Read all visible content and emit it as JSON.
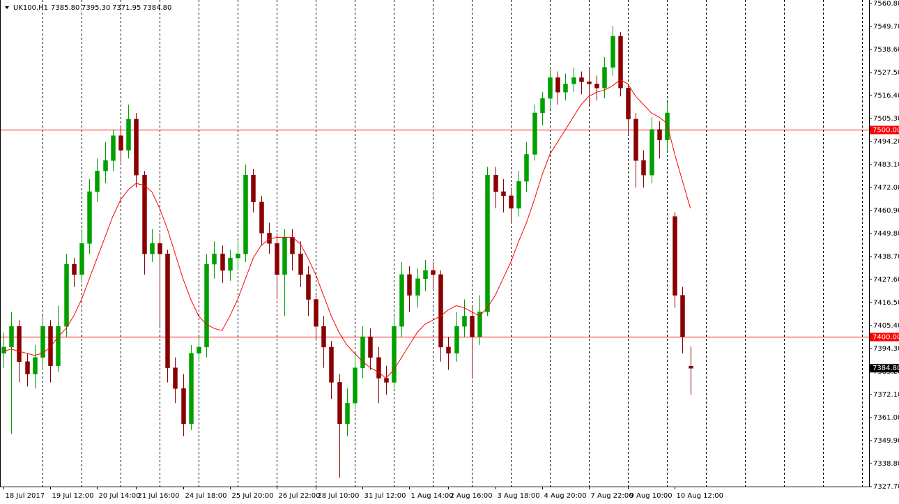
{
  "chart_data": {
    "type": "candlestick",
    "symbol": "UK100,H1",
    "header_ohlc": [
      "7385.80",
      "7395.30",
      "7371.95",
      "7384.80"
    ],
    "categories": [
      "18 Jul 2017",
      null,
      null,
      null,
      null,
      null,
      "19 Jul 12:00",
      null,
      null,
      null,
      null,
      null,
      "20 Jul 14:00",
      null,
      null,
      null,
      null,
      "21 Jul 16:00",
      null,
      null,
      null,
      null,
      null,
      "24 Jul 18:00",
      null,
      null,
      null,
      null,
      null,
      "25 Jul 20:00",
      null,
      null,
      null,
      null,
      null,
      "26 Jul 22:00",
      null,
      null,
      null,
      null,
      "28 Jul 10:00",
      null,
      null,
      null,
      null,
      null,
      "31 Jul 12:00",
      null,
      null,
      null,
      null,
      null,
      "1 Aug 14:00",
      null,
      null,
      null,
      null,
      "2 Aug 16:00",
      null,
      null,
      null,
      null,
      null,
      "3 Aug 18:00",
      null,
      null,
      null,
      null,
      null,
      "4 Aug 20:00",
      null,
      null,
      null,
      null,
      null,
      "7 Aug 22:00",
      null,
      null,
      null,
      null,
      "9 Aug 10:00",
      null,
      null,
      null,
      null,
      null,
      "10 Aug 12:00",
      null,
      null
    ],
    "open": [
      7392,
      7395,
      7405,
      7388,
      7382,
      7390,
      7405,
      7386,
      7405,
      7435,
      7430,
      7445,
      7470,
      7480,
      7485,
      7497,
      7490,
      7505,
      7478,
      7440,
      7445,
      7440,
      7385,
      7375,
      7358,
      7392,
      7395,
      7435,
      7440,
      7432,
      7438,
      7440,
      7478,
      7465,
      7450,
      7445,
      7430,
      7448,
      7440,
      7430,
      7418,
      7405,
      7395,
      7378,
      7358,
      7368,
      7385,
      7400,
      7390,
      7380,
      7378,
      7405,
      7430,
      7420,
      7428,
      7432,
      7430,
      7395,
      7392,
      7405,
      7410,
      7400,
      7412,
      7478,
      7470,
      7468,
      7462,
      7475,
      7488,
      7508,
      7515,
      7525,
      7518,
      7522,
      7525,
      7523,
      7522,
      7520,
      7530,
      7545,
      7520,
      7505,
      7485,
      7478,
      7500,
      7495,
      7458,
      7420,
      7385.8
    ],
    "high": [
      7402,
      7412,
      7408,
      7392,
      7396,
      7410,
      7408,
      7415,
      7440,
      7438,
      7452,
      7476,
      7486,
      7494,
      7500,
      7502,
      7512,
      7508,
      7480,
      7452,
      7450,
      7442,
      7390,
      7382,
      7396,
      7400,
      7440,
      7446,
      7444,
      7442,
      7446,
      7483,
      7481,
      7468,
      7455,
      7450,
      7452,
      7452,
      7446,
      7434,
      7420,
      7410,
      7398,
      7382,
      7375,
      7392,
      7405,
      7404,
      7395,
      7386,
      7410,
      7436,
      7434,
      7433,
      7437,
      7436,
      7432,
      7400,
      7412,
      7418,
      7414,
      7420,
      7482,
      7482,
      7476,
      7472,
      7480,
      7494,
      7512,
      7518,
      7530,
      7528,
      7527,
      7530,
      7528,
      7530,
      7526,
      7535,
      7550,
      7547,
      7522,
      7508,
      7490,
      7506,
      7504,
      7513,
      7460,
      7424,
      7395.3
    ],
    "low": [
      7385,
      7353,
      7378,
      7376,
      7375,
      7384,
      7378,
      7383,
      7400,
      7424,
      7426,
      7440,
      7465,
      7474,
      7480,
      7484,
      7486,
      7472,
      7430,
      7436,
      7405,
      7378,
      7368,
      7352,
      7355,
      7388,
      7390,
      7428,
      7426,
      7427,
      7432,
      7436,
      7460,
      7444,
      7440,
      7418,
      7410,
      7432,
      7424,
      7410,
      7398,
      7385,
      7370,
      7332,
      7352,
      7365,
      7380,
      7384,
      7368,
      7372,
      7375,
      7400,
      7412,
      7414,
      7422,
      7422,
      7388,
      7384,
      7388,
      7400,
      7380,
      7396,
      7410,
      7462,
      7460,
      7455,
      7458,
      7470,
      7485,
      7502,
      7510,
      7512,
      7514,
      7518,
      7517,
      7512,
      7514,
      7515,
      7526,
      7516,
      7498,
      7472,
      7472,
      7474,
      7486,
      7490,
      7414,
      7392,
      7371.95
    ],
    "close": [
      7395,
      7405,
      7388,
      7382,
      7390,
      7405,
      7386,
      7405,
      7435,
      7430,
      7445,
      7470,
      7480,
      7485,
      7497,
      7490,
      7505,
      7478,
      7440,
      7445,
      7440,
      7385,
      7375,
      7358,
      7392,
      7395,
      7435,
      7440,
      7432,
      7438,
      7440,
      7478,
      7465,
      7450,
      7445,
      7430,
      7448,
      7440,
      7430,
      7418,
      7405,
      7395,
      7378,
      7358,
      7368,
      7385,
      7400,
      7390,
      7380,
      7378,
      7405,
      7430,
      7420,
      7428,
      7432,
      7430,
      7395,
      7392,
      7405,
      7410,
      7400,
      7412,
      7478,
      7470,
      7468,
      7462,
      7475,
      7488,
      7508,
      7515,
      7525,
      7518,
      7522,
      7525,
      7523,
      7522,
      7520,
      7530,
      7545,
      7520,
      7505,
      7485,
      7478,
      7500,
      7495,
      7508,
      7420,
      7400,
      7384.8
    ],
    "bull_color": "#00a000",
    "bear_color": "#8b0000",
    "ma": {
      "color": "#ff0000",
      "values": [
        7393,
        7394,
        7393,
        7392,
        7391,
        7392,
        7395,
        7400,
        7404,
        7410,
        7418,
        7428,
        7438,
        7448,
        7458,
        7466,
        7471,
        7474,
        7473,
        7470,
        7462,
        7452,
        7440,
        7428,
        7418,
        7410,
        7406,
        7404,
        7403,
        7410,
        7418,
        7428,
        7438,
        7444,
        7447,
        7448,
        7448,
        7448,
        7445,
        7438,
        7430,
        7420,
        7410,
        7402,
        7396,
        7392,
        7388,
        7385,
        7383,
        7380,
        7384,
        7390,
        7396,
        7402,
        7406,
        7408,
        7410,
        7413,
        7415,
        7414,
        7412,
        7410,
        7414,
        7420,
        7428,
        7436,
        7446,
        7455,
        7466,
        7478,
        7488,
        7494,
        7500,
        7506,
        7512,
        7516,
        7518,
        7519,
        7521,
        7524,
        7522,
        7516,
        7512,
        7508,
        7506,
        7503,
        7488,
        7475,
        7462
      ]
    },
    "hlines": [
      {
        "value": 7500,
        "label": "7500.00",
        "color": "#ff0000"
      },
      {
        "value": 7400,
        "label": "7400.00",
        "color": "#ff0000"
      }
    ],
    "last_price": {
      "value": 7384.8,
      "label": "7384.80"
    },
    "ylim": [
      7327.7,
      7560.8
    ],
    "yticks": [
      {
        "value": 7560.8,
        "label": "7560.80"
      },
      {
        "value": 7549.7,
        "label": "7549.70"
      },
      {
        "value": 7538.6,
        "label": "7538.60"
      },
      {
        "value": 7527.5,
        "label": "7527.50"
      },
      {
        "value": 7516.4,
        "label": "7516.40"
      },
      {
        "value": 7505.3,
        "label": "7505.30"
      },
      {
        "value": 7494.2,
        "label": "7494.20"
      },
      {
        "value": 7483.1,
        "label": "7483.10"
      },
      {
        "value": 7472,
        "label": "7472.00"
      },
      {
        "value": 7460.9,
        "label": "7460.90"
      },
      {
        "value": 7449.8,
        "label": "7449.80"
      },
      {
        "value": 7438.7,
        "label": "7438.70"
      },
      {
        "value": 7427.6,
        "label": "7427.60"
      },
      {
        "value": 7416.5,
        "label": "7416.50"
      },
      {
        "value": 7405.4,
        "label": "7405.40"
      },
      {
        "value": 7394.3,
        "label": "7394.30"
      },
      {
        "value": 7383.2,
        "label": "7383.20"
      },
      {
        "value": 7372.1,
        "label": "7372.10"
      },
      {
        "value": 7361,
        "label": "7361.00"
      },
      {
        "value": 7349.9,
        "label": "7349.90"
      },
      {
        "value": 7338.8,
        "label": "7338.80"
      },
      {
        "value": 7327.7,
        "label": "7327.70"
      }
    ]
  }
}
